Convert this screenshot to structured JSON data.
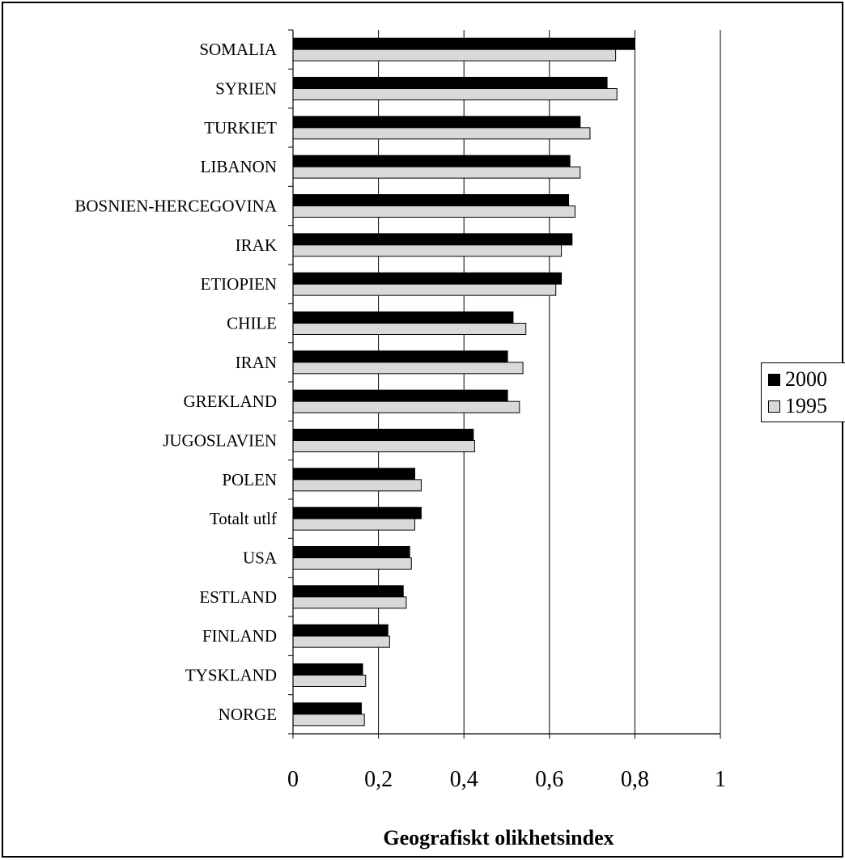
{
  "chart_data": {
    "type": "bar",
    "orientation": "horizontal",
    "xlabel": "Geografiskt olikhetsindex",
    "xlim": [
      0,
      1
    ],
    "xticks": [
      "0",
      "0,2",
      "0,4",
      "0,6",
      "0,8",
      "1"
    ],
    "grid": "vertical",
    "legend_position": "right",
    "categories": [
      "SOMALIA",
      "SYRIEN",
      "TURKIET",
      "LIBANON",
      "BOSNIEN-HERCEGOVINA",
      "IRAK",
      "ETIOPIEN",
      "CHILE",
      "IRAN",
      "GREKLAND",
      "JUGOSLAVIEN",
      "POLEN",
      "Totalt utlf",
      "USA",
      "ESTLAND",
      "FINLAND",
      "TYSKLAND",
      "NORGE"
    ],
    "series": [
      {
        "name": "2000",
        "color": "#000000",
        "values": [
          0.8,
          0.735,
          0.672,
          0.648,
          0.645,
          0.653,
          0.628,
          0.515,
          0.502,
          0.502,
          0.422,
          0.285,
          0.3,
          0.273,
          0.258,
          0.222,
          0.163,
          0.16
        ]
      },
      {
        "name": "1995",
        "color": "#d9d9d9",
        "values": [
          0.755,
          0.758,
          0.695,
          0.672,
          0.66,
          0.628,
          0.615,
          0.545,
          0.538,
          0.53,
          0.425,
          0.3,
          0.285,
          0.277,
          0.265,
          0.226,
          0.17,
          0.167
        ]
      }
    ]
  }
}
